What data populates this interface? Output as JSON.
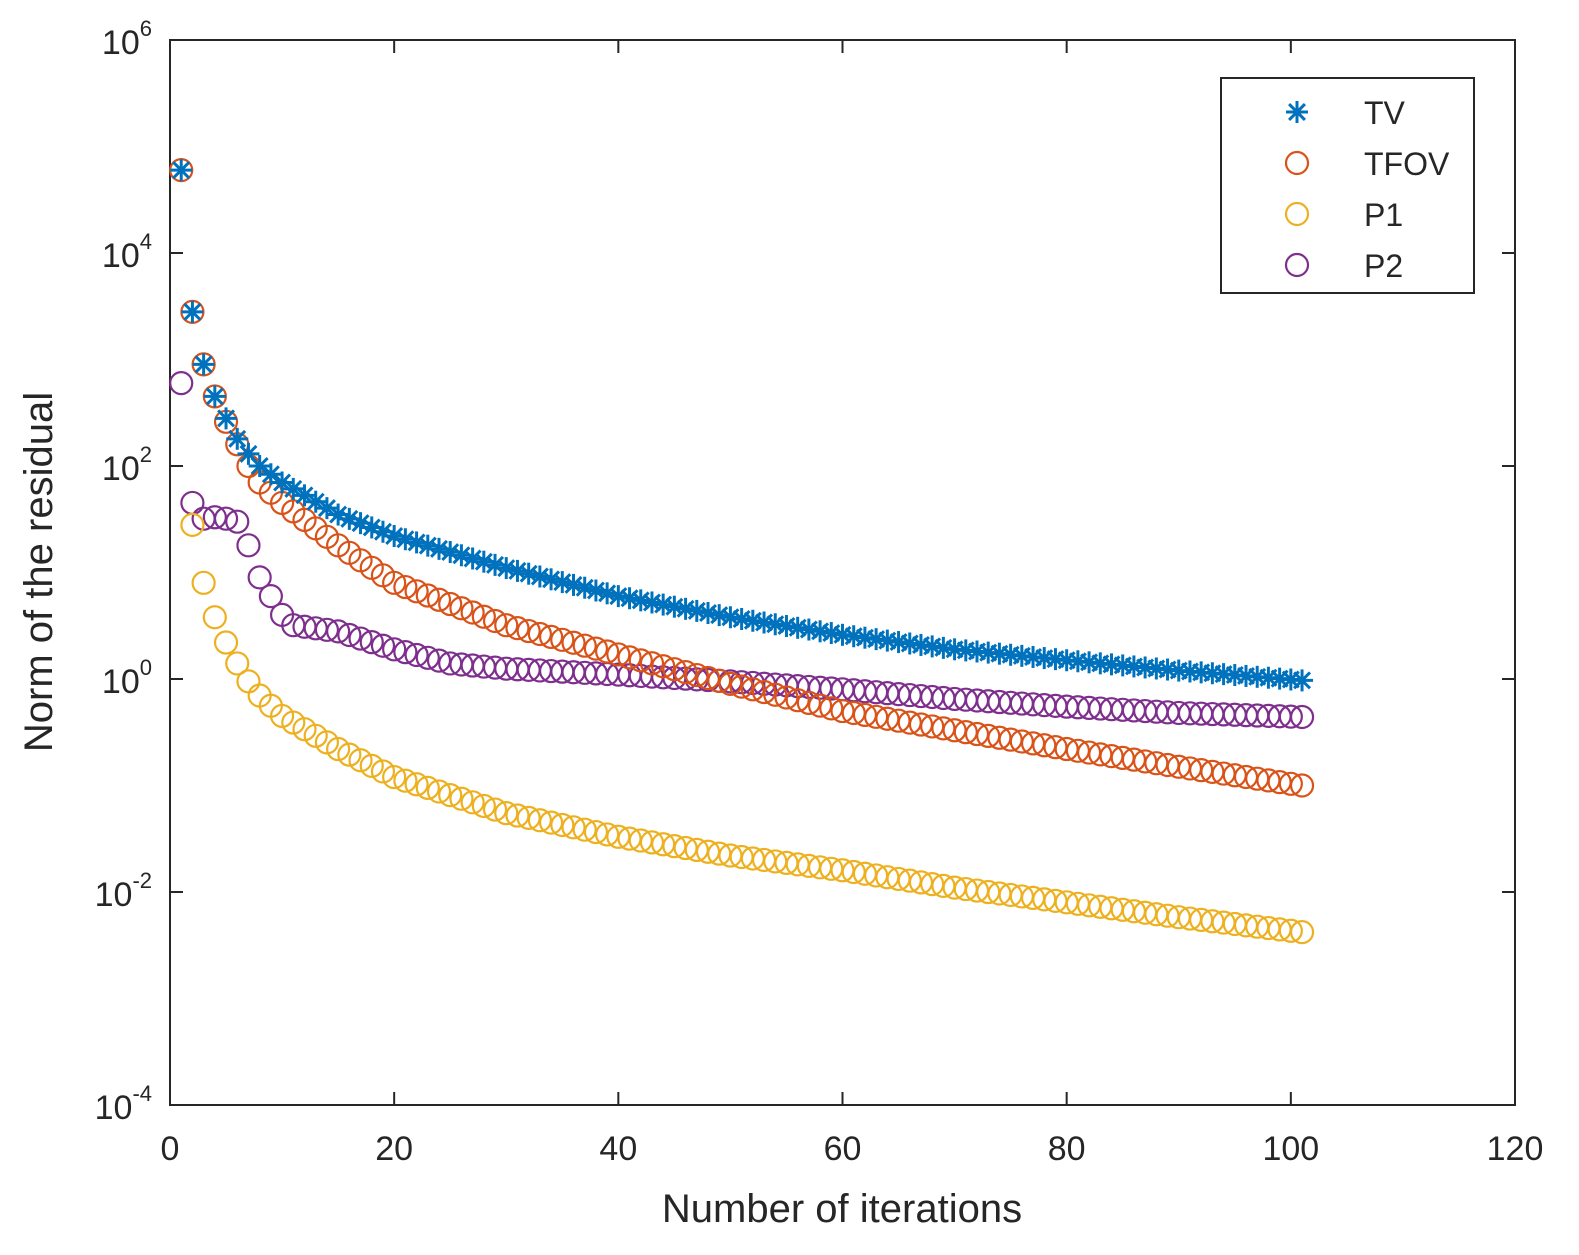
{
  "chart_data": {
    "type": "scatter",
    "title": "",
    "xlabel": "Number of iterations",
    "ylabel": "Norm of the residual",
    "xlim": [
      0,
      120
    ],
    "ylim": [
      0.0001,
      1000000
    ],
    "yscale": "log",
    "x_ticks": [
      0,
      20,
      40,
      60,
      80,
      100,
      120
    ],
    "x_tick_labels": [
      "0",
      "20",
      "40",
      "60",
      "80",
      "100",
      "120"
    ],
    "y_ticks": [
      0.0001,
      0.01,
      1,
      100,
      10000,
      1000000
    ],
    "y_tick_labels": [
      {
        "base": "10",
        "exp": "-4"
      },
      {
        "base": "10",
        "exp": "-2"
      },
      {
        "base": "10",
        "exp": "0"
      },
      {
        "base": "10",
        "exp": "2"
      },
      {
        "base": "10",
        "exp": "4"
      },
      {
        "base": "10",
        "exp": "6"
      }
    ],
    "grid": false,
    "legend_position": "top-right",
    "x": [
      1,
      101
    ],
    "series": [
      {
        "name": "TV",
        "marker": "asterisk",
        "color": "#0072BD",
        "anchors": [
          [
            1,
            60000
          ],
          [
            2,
            2800
          ],
          [
            3,
            900
          ],
          [
            4,
            450
          ],
          [
            5,
            280
          ],
          [
            6,
            180
          ],
          [
            7,
            130
          ],
          [
            8,
            100
          ],
          [
            10,
            70
          ],
          [
            15,
            35
          ],
          [
            20,
            22
          ],
          [
            30,
            11
          ],
          [
            40,
            6
          ],
          [
            50,
            3.8
          ],
          [
            60,
            2.6
          ],
          [
            70,
            1.9
          ],
          [
            80,
            1.5
          ],
          [
            90,
            1.2
          ],
          [
            101,
            0.97
          ]
        ]
      },
      {
        "name": "TFOV",
        "marker": "circle",
        "color": "#D95319",
        "anchors": [
          [
            1,
            60000
          ],
          [
            2,
            2800
          ],
          [
            3,
            900
          ],
          [
            4,
            450
          ],
          [
            5,
            260
          ],
          [
            6,
            160
          ],
          [
            7,
            100
          ],
          [
            8,
            70
          ],
          [
            10,
            45
          ],
          [
            15,
            18
          ],
          [
            20,
            8
          ],
          [
            30,
            3.2
          ],
          [
            40,
            1.7
          ],
          [
            50,
            0.9
          ],
          [
            60,
            0.5
          ],
          [
            70,
            0.33
          ],
          [
            80,
            0.22
          ],
          [
            90,
            0.15
          ],
          [
            101,
            0.1
          ]
        ]
      },
      {
        "name": "P1",
        "marker": "circle",
        "color": "#EDB120",
        "anchors": [
          [
            2,
            28
          ],
          [
            3,
            8
          ],
          [
            4,
            3.8
          ],
          [
            5,
            2.2
          ],
          [
            6,
            1.4
          ],
          [
            7,
            0.95
          ],
          [
            8,
            0.7
          ],
          [
            10,
            0.45
          ],
          [
            15,
            0.22
          ],
          [
            20,
            0.12
          ],
          [
            30,
            0.055
          ],
          [
            40,
            0.033
          ],
          [
            50,
            0.022
          ],
          [
            60,
            0.016
          ],
          [
            70,
            0.011
          ],
          [
            80,
            0.008
          ],
          [
            90,
            0.0058
          ],
          [
            101,
            0.0042
          ]
        ]
      },
      {
        "name": "P2",
        "marker": "circle",
        "color": "#7E2F8E",
        "anchors": [
          [
            1,
            600
          ],
          [
            2,
            45
          ],
          [
            3,
            32
          ],
          [
            4,
            33
          ],
          [
            5,
            32
          ],
          [
            6,
            30
          ],
          [
            7,
            18
          ],
          [
            8,
            9
          ],
          [
            9,
            6
          ],
          [
            10,
            4
          ],
          [
            11,
            3.2
          ],
          [
            15,
            2.8
          ],
          [
            20,
            1.9
          ],
          [
            25,
            1.4
          ],
          [
            30,
            1.25
          ],
          [
            40,
            1.1
          ],
          [
            50,
            0.95
          ],
          [
            60,
            0.8
          ],
          [
            70,
            0.65
          ],
          [
            80,
            0.55
          ],
          [
            90,
            0.48
          ],
          [
            101,
            0.44
          ]
        ]
      }
    ]
  }
}
